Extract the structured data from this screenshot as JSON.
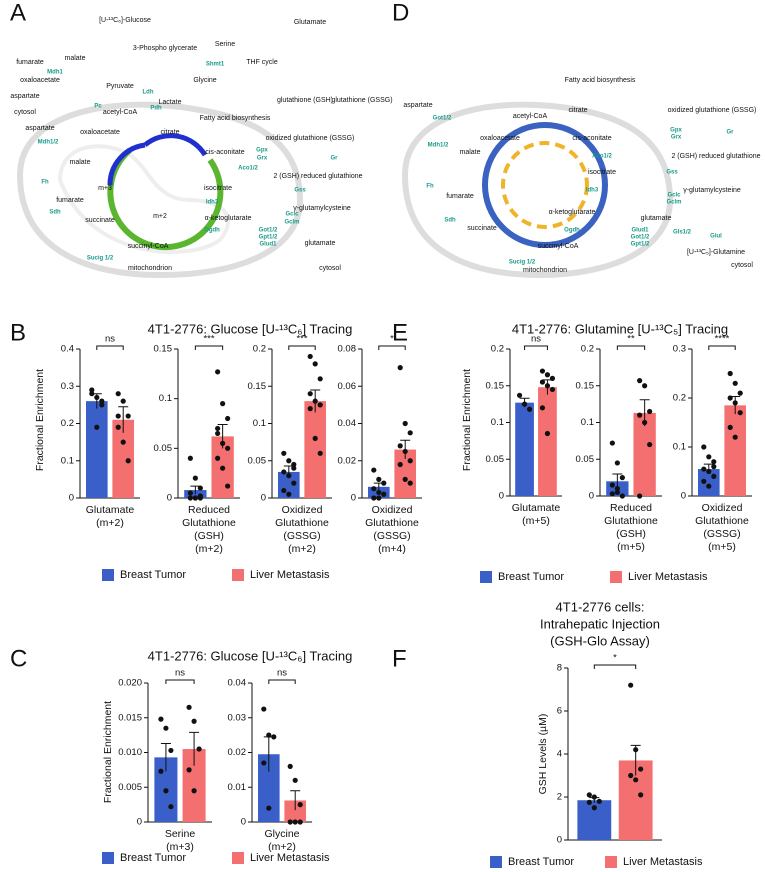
{
  "panels": [
    {
      "letter": "A"
    },
    {
      "letter": "B",
      "title": [
        "4T1-2776: Glucose [U-¹³C₆] Tracing"
      ],
      "ylabel": "Fractional Enrichment"
    },
    {
      "letter": "C",
      "title": [
        "4T1-2776: Glucose [U-¹³C₆] Tracing"
      ],
      "ylabel": "Fractional Enrichment"
    },
    {
      "letter": "D"
    },
    {
      "letter": "E",
      "title": [
        "4T1-2776: Glutamine [U-¹³C₅] Tracing"
      ],
      "ylabel": "Fractional Enrichment"
    },
    {
      "letter": "F",
      "title": [
        "4T1-2776 cells:",
        "Intrahepatic Injection",
        "(GSH-Glo Assay)"
      ],
      "ylabel": "GSH Levels (µM)"
    }
  ],
  "diagrams": [
    {
      "labels": [
        "[U-¹³C₆]-Glucose",
        "3-Phospho glycerate",
        "Serine",
        "THF cycle",
        "Glycine",
        "Glutamate",
        "glutathione (GSH)",
        "glutathione (GSSG)",
        "fumarate",
        "malate",
        "oxaloacetate",
        "aspartate",
        "Pyruvate",
        "Lactate",
        "acetyl-CoA",
        "Fatty acid biosynthesis",
        "oxaloacetate",
        "citrate",
        "cytosol",
        "aspartate",
        "malate",
        "fumarate",
        "succinate",
        "m+3",
        "m+2",
        "cis-aconitate",
        "isocitrate",
        "α-ketoglutarate",
        "succinyl-CoA",
        "oxidized glutathione (GSSG)",
        "2 (GSH) reduced glutathione",
        "γ-glutamylcysteine",
        "glutamate",
        "mitochondrion",
        "cytosol"
      ],
      "enzymes": [
        "Ldh",
        "Pdh",
        "Pc",
        "Shmt1",
        "Mdh1",
        "Mdh1/2",
        "Fh",
        "Sdh",
        "Sucig 1/2",
        "Ogdh",
        "Idh3",
        "Aco1/2",
        "Gpx",
        "Grx",
        "Gr",
        "Gss",
        "Gclc",
        "Gclm",
        "Got1/2",
        "Gpt1/2",
        "Glud1"
      ]
    },
    {
      "labels": [
        "aspartate",
        "oxaloacetate",
        "acetyl-CoA",
        "citrate",
        "Fatty acid biosynthesis",
        "malate",
        "fumarate",
        "succinate",
        "succinyl-CoA",
        "α-ketoglutarate",
        "isocitrate",
        "cis-aconitate",
        "oxidized glutathione (GSSG)",
        "2 (GSH) reduced glutathione",
        "γ-glutamylcysteine",
        "glutamate",
        "[U-¹³C₅]-Glutamine",
        "mitochondrion",
        "cytosol"
      ],
      "enzymes": [
        "Got1/2",
        "Mdh1/2",
        "Fh",
        "Sdh",
        "Sucig 1/2",
        "Ogdh",
        "Idh3",
        "Aco1/2",
        "Gpx",
        "Grx",
        "Gr",
        "Gss",
        "Gclc",
        "Gclm",
        "Glud1",
        "Got1/2",
        "Gpt1/2",
        "Gls1/2",
        "Glul"
      ]
    }
  ],
  "chart_data": [
    {
      "type": "bar",
      "categories": [
        "Glutamate\n(m+2)"
      ],
      "ylim": [
        0,
        0.4
      ],
      "yticks": [
        0,
        0.1,
        0.2,
        0.3,
        0.4
      ],
      "significance": "ns",
      "series": [
        {
          "name": "Breast Tumor",
          "color": "#3a5fc8",
          "values": [
            0.26
          ],
          "errors": [
            0.02
          ],
          "points": [
            0.29,
            0.27,
            0.25,
            0.28,
            0.19,
            0.26
          ]
        },
        {
          "name": "Liver Metastasis",
          "color": "#f46f6f",
          "values": [
            0.21
          ],
          "errors": [
            0.035
          ],
          "points": [
            0.28,
            0.26,
            0.22,
            0.19,
            0.15,
            0.1,
            0.22
          ]
        }
      ]
    },
    {
      "type": "bar",
      "categories": [
        "Reduced\nGlutathione\n(GSH)\n(m+2)"
      ],
      "ylim": [
        0,
        0.15
      ],
      "yticks": [
        0,
        0.05,
        0.1,
        0.15
      ],
      "significance": "***",
      "series": [
        {
          "name": "Breast Tumor",
          "color": "#3a5fc8",
          "values": [
            0.008
          ],
          "errors": [
            0.004
          ],
          "points": [
            0.04,
            0.02,
            0.01,
            0.005,
            0,
            0,
            0,
            0,
            0.002
          ]
        },
        {
          "name": "Liver Metastasis",
          "color": "#f46f6f",
          "values": [
            0.062
          ],
          "errors": [
            0.012
          ],
          "points": [
            0.127,
            0.095,
            0.08,
            0.07,
            0.055,
            0.05,
            0.04,
            0.03,
            0.012,
            0.065
          ]
        }
      ]
    },
    {
      "type": "bar",
      "categories": [
        "Oxidized\nGlutathione\n(GSSG)\n(m+2)"
      ],
      "ylim": [
        0,
        0.2
      ],
      "yticks": [
        0,
        0.05,
        0.1,
        0.15,
        0.2
      ],
      "significance": "***",
      "series": [
        {
          "name": "Breast Tumor",
          "color": "#3a5fc8",
          "values": [
            0.035
          ],
          "errors": [
            0.008
          ],
          "points": [
            0.06,
            0.05,
            0.04,
            0.035,
            0.03,
            0.02,
            0.01,
            0.005,
            0.045
          ]
        },
        {
          "name": "Liver Metastasis",
          "color": "#f46f6f",
          "values": [
            0.13
          ],
          "errors": [
            0.015
          ],
          "points": [
            0.19,
            0.18,
            0.16,
            0.14,
            0.13,
            0.125,
            0.12,
            0.08,
            0.06
          ]
        }
      ]
    },
    {
      "type": "bar",
      "categories": [
        "Oxidized\nGlutathione\n(GSSG)\n(m+4)"
      ],
      "ylim": [
        0,
        0.08
      ],
      "yticks": [
        0,
        0.02,
        0.04,
        0.06,
        0.08
      ],
      "significance": "*",
      "series": [
        {
          "name": "Breast Tumor",
          "color": "#3a5fc8",
          "values": [
            0.006
          ],
          "errors": [
            0.002
          ],
          "points": [
            0.015,
            0.01,
            0.008,
            0.005,
            0.003,
            0.002,
            0,
            0
          ]
        },
        {
          "name": "Liver Metastasis",
          "color": "#f46f6f",
          "values": [
            0.026
          ],
          "errors": [
            0.005
          ],
          "points": [
            0.07,
            0.04,
            0.035,
            0.028,
            0.025,
            0.02,
            0.018,
            0.01,
            0.008
          ]
        }
      ]
    },
    {
      "type": "bar",
      "categories": [
        "Serine\n(m+3)"
      ],
      "ylim": [
        0,
        0.02
      ],
      "yticks": [
        0,
        0.005,
        {
          "value": 0.01,
          "label": "0.010"
        },
        0.015,
        {
          "value": 0.02,
          "label": "0.020"
        }
      ],
      "significance": "ns",
      "series": [
        {
          "name": "Breast Tumor",
          "color": "#3a5fc8",
          "values": [
            0.0093
          ],
          "errors": [
            0.002
          ],
          "points": [
            0.0148,
            0.0135,
            0.0103,
            0.0073,
            0.0045,
            0.0022
          ]
        },
        {
          "name": "Liver Metastasis",
          "color": "#f46f6f",
          "values": [
            0.0105
          ],
          "errors": [
            0.0024
          ],
          "points": [
            0.0165,
            0.0145,
            0.0105,
            0.0075,
            0.0045
          ]
        }
      ]
    },
    {
      "type": "bar",
      "categories": [
        "Glycine\n(m+2)"
      ],
      "ylim": [
        0,
        0.04
      ],
      "yticks": [
        0,
        0.01,
        0.02,
        0.03,
        0.04
      ],
      "significance": "ns",
      "series": [
        {
          "name": "Breast Tumor",
          "color": "#3a5fc8",
          "values": [
            0.0195
          ],
          "errors": [
            0.005
          ],
          "points": [
            0.0325,
            0.025,
            0.0245,
            0.017,
            0.004
          ]
        },
        {
          "name": "Liver Metastasis",
          "color": "#f46f6f",
          "values": [
            0.0062
          ],
          "errors": [
            0.0028
          ],
          "points": [
            0.016,
            0.012,
            0.005,
            0,
            0,
            0
          ]
        }
      ]
    },
    {
      "type": "bar",
      "categories": [
        "Glutamate\n(m+5)"
      ],
      "ylim": [
        0,
        0.2
      ],
      "yticks": [
        0,
        0.05,
        0.1,
        0.15,
        0.2
      ],
      "significance": "ns",
      "series": [
        {
          "name": "Breast Tumor",
          "color": "#3a5fc8",
          "values": [
            0.127
          ],
          "errors": [
            0.006
          ],
          "points": [
            0.137,
            0.125,
            0.118
          ]
        },
        {
          "name": "Liver Metastasis",
          "color": "#f46f6f",
          "values": [
            0.148
          ],
          "errors": [
            0.01
          ],
          "points": [
            0.17,
            0.165,
            0.16,
            0.155,
            0.15,
            0.145,
            0.12,
            0.085
          ]
        }
      ]
    },
    {
      "type": "bar",
      "categories": [
        "Reduced\nGlutathione\n(GSH)\n(m+5)"
      ],
      "ylim": [
        0,
        0.2
      ],
      "yticks": [
        0,
        0.05,
        0.1,
        0.15,
        0.2
      ],
      "significance": "**",
      "series": [
        {
          "name": "Breast Tumor",
          "color": "#3a5fc8",
          "values": [
            0.02
          ],
          "errors": [
            0.01
          ],
          "points": [
            0.072,
            0.045,
            0.025,
            0.015,
            0.005,
            0,
            0.003,
            0.01
          ]
        },
        {
          "name": "Liver Metastasis",
          "color": "#f46f6f",
          "values": [
            0.113
          ],
          "errors": [
            0.018
          ],
          "points": [
            0.157,
            0.15,
            0.115,
            0.11,
            0.1,
            0.07,
            0
          ]
        }
      ]
    },
    {
      "type": "bar",
      "categories": [
        "Oxidized\nGlutathione\n(GSSG)\n(m+5)"
      ],
      "ylim": [
        0,
        0.3
      ],
      "yticks": [
        0,
        0.1,
        0.2,
        0.3
      ],
      "significance": "****",
      "series": [
        {
          "name": "Breast Tumor",
          "color": "#3a5fc8",
          "values": [
            0.055
          ],
          "errors": [
            0.01
          ],
          "points": [
            0.1,
            0.08,
            0.07,
            0.055,
            0.05,
            0.04,
            0.03,
            0.02,
            0.06
          ]
        },
        {
          "name": "Liver Metastasis",
          "color": "#f46f6f",
          "values": [
            0.185
          ],
          "errors": [
            0.018
          ],
          "points": [
            0.25,
            0.23,
            0.21,
            0.2,
            0.19,
            0.17,
            0.14,
            0.12
          ]
        }
      ]
    },
    {
      "type": "bar",
      "categories": [
        null
      ],
      "ylim": [
        0,
        8
      ],
      "yticks": [
        0,
        2,
        4,
        6,
        8
      ],
      "significance": "*",
      "series": [
        {
          "name": "Breast Tumor",
          "color": "#3a5fc8",
          "values": [
            1.85
          ],
          "errors": [
            0.12
          ],
          "points": [
            2.1,
            2.0,
            1.8,
            1.75,
            1.5
          ]
        },
        {
          "name": "Liver Metastasis",
          "color": "#f46f6f",
          "values": [
            3.7
          ],
          "errors": [
            0.7
          ],
          "points": [
            7.2,
            4.2,
            3.3,
            3.0,
            2.8,
            2.1
          ]
        }
      ]
    }
  ]
}
